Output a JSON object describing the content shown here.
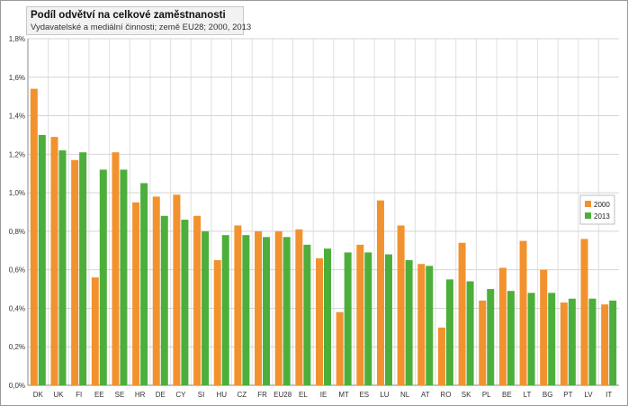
{
  "chart_data": {
    "type": "bar",
    "title": "Podíl odvětví na celkové zaměstnanosti",
    "subtitle": "Vydavatelské a mediální činnosti; země EU28; 2000, 2013",
    "xlabel": "",
    "ylabel": "",
    "ylim": [
      0,
      1.8
    ],
    "y_ticks": [
      "0,0%",
      "0,2%",
      "0,4%",
      "0,6%",
      "0,8%",
      "1,0%",
      "1,2%",
      "1,4%",
      "1,6%",
      "1,8%"
    ],
    "grid": true,
    "legend_position": "right",
    "categories": [
      "DK",
      "UK",
      "FI",
      "EE",
      "SE",
      "HR",
      "DE",
      "CY",
      "SI",
      "HU",
      "CZ",
      "FR",
      "EU28",
      "EL",
      "IE",
      "MT",
      "ES",
      "LU",
      "NL",
      "AT",
      "RO",
      "SK",
      "PL",
      "BE",
      "LT",
      "BG",
      "PT",
      "LV",
      "IT"
    ],
    "series": [
      {
        "name": "2000",
        "color": "#f2922e",
        "values": [
          1.54,
          1.29,
          1.17,
          0.56,
          1.21,
          0.95,
          0.98,
          0.99,
          0.88,
          0.65,
          0.83,
          0.8,
          0.8,
          0.81,
          0.66,
          0.38,
          0.73,
          0.96,
          0.83,
          0.63,
          0.3,
          0.74,
          0.44,
          0.61,
          0.75,
          0.6,
          0.43,
          0.76,
          0.42
        ]
      },
      {
        "name": "2013",
        "color": "#4daf3b",
        "values": [
          1.3,
          1.22,
          1.21,
          1.12,
          1.12,
          1.05,
          0.88,
          0.86,
          0.8,
          0.78,
          0.78,
          0.77,
          0.77,
          0.73,
          0.71,
          0.69,
          0.69,
          0.68,
          0.65,
          0.62,
          0.55,
          0.54,
          0.5,
          0.49,
          0.48,
          0.48,
          0.45,
          0.45,
          0.44
        ]
      }
    ]
  }
}
